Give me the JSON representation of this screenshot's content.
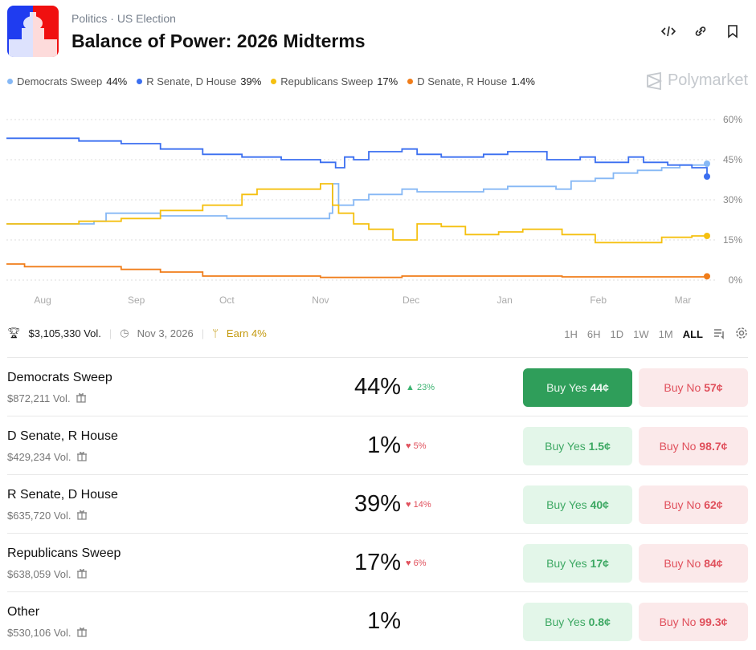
{
  "header": {
    "category": "Politics",
    "subcategory": "US Election",
    "separator": "·",
    "title": "Balance of Power: 2026 Midterms",
    "brand": "Polymarket"
  },
  "legend": [
    {
      "label": "Democrats Sweep",
      "value": "44%",
      "color": "#86b8f5"
    },
    {
      "label": "R Senate, D House",
      "value": "39%",
      "color": "#3b6ff0"
    },
    {
      "label": "Republicans Sweep",
      "value": "17%",
      "color": "#f5c010"
    },
    {
      "label": "D Senate, R House",
      "value": "1.4%",
      "color": "#f07d1a"
    }
  ],
  "chart_data": {
    "type": "line",
    "xlabel": "",
    "ylabel": "",
    "ylim": [
      0,
      60
    ],
    "yticks": [
      "0%",
      "15%",
      "30%",
      "45%",
      "60%"
    ],
    "ytick_values": [
      0,
      15,
      30,
      45,
      60
    ],
    "grid": true,
    "x_unit": "days since Aug 1",
    "xlim": [
      -12,
      220
    ],
    "xticks": [
      "Aug",
      "Sep",
      "Oct",
      "Nov",
      "Dec",
      "Jan",
      "Feb",
      "Mar"
    ],
    "xtick_values": [
      0,
      31,
      61,
      92,
      122,
      153,
      184,
      212
    ],
    "series": [
      {
        "name": "Democrats Sweep",
        "color": "#86b8f5",
        "x": [
          -12,
          17,
          21,
          34,
          39,
          53,
          61,
          92,
          95,
          96,
          98,
          103,
          108,
          116,
          119,
          124,
          133,
          146,
          154,
          160,
          170,
          175,
          183,
          189,
          197,
          205,
          211,
          220
        ],
        "y": [
          21,
          22,
          25,
          25,
          24,
          24,
          23,
          23,
          25,
          36,
          28,
          30,
          32,
          32,
          34,
          33,
          33,
          34,
          35,
          35,
          34,
          37,
          38,
          40,
          41,
          42,
          43,
          43.5
        ]
      },
      {
        "name": "R Senate, D House",
        "color": "#3b6ff0",
        "x": [
          -12,
          12,
          26,
          39,
          53,
          66,
          79,
          92,
          97,
          100,
          103,
          108,
          119,
          124,
          132,
          146,
          154,
          167,
          178,
          183,
          194,
          199,
          207,
          215,
          220
        ],
        "y": [
          53,
          52,
          51,
          49,
          47,
          46,
          45,
          44,
          42,
          46,
          45,
          48,
          49,
          47,
          46,
          47,
          48,
          45,
          46,
          44,
          46,
          44,
          43,
          42,
          38.7
        ]
      },
      {
        "name": "Republicans Sweep",
        "color": "#f5c010",
        "x": [
          -12,
          12,
          26,
          39,
          53,
          66,
          71,
          79,
          87,
          92,
          96,
          98,
          103,
          108,
          116,
          124,
          132,
          140,
          151,
          159,
          172,
          183,
          194,
          205,
          215,
          220
        ],
        "y": [
          21,
          22,
          23,
          26,
          28,
          32,
          34,
          34,
          34,
          36,
          28,
          25,
          21,
          19,
          15,
          21,
          20,
          17,
          18,
          19,
          17,
          14,
          14,
          16,
          16.5,
          16.5
        ]
      },
      {
        "name": "D Senate, R House",
        "color": "#f07d1a",
        "x": [
          -12,
          -6,
          26,
          39,
          53,
          92,
          119,
          172,
          220
        ],
        "y": [
          6,
          5,
          4,
          3,
          1.5,
          1,
          1.5,
          1.2,
          1.4
        ]
      }
    ]
  },
  "stats": {
    "volume": "$3,105,330 Vol.",
    "date": "Nov 3, 2026",
    "earn": "Earn 4%"
  },
  "ranges": [
    "1H",
    "6H",
    "1D",
    "1W",
    "1M",
    "ALL"
  ],
  "outcomes": [
    {
      "name": "Democrats Sweep",
      "vol": "$872,211 Vol.",
      "pct": "44%",
      "change": "23%",
      "dir": "up",
      "yes_label": "Buy Yes",
      "yes_price": "44¢",
      "no_label": "Buy No",
      "no_price": "57¢"
    },
    {
      "name": "D Senate, R House",
      "vol": "$429,234 Vol.",
      "pct": "1%",
      "change": "5%",
      "dir": "dn",
      "yes_label": "Buy Yes",
      "yes_price": "1.5¢",
      "no_label": "Buy No",
      "no_price": "98.7¢"
    },
    {
      "name": "R Senate, D House",
      "vol": "$635,720 Vol.",
      "pct": "39%",
      "change": "14%",
      "dir": "dn",
      "yes_label": "Buy Yes",
      "yes_price": "40¢",
      "no_label": "Buy No",
      "no_price": "62¢"
    },
    {
      "name": "Republicans Sweep",
      "vol": "$638,059 Vol.",
      "pct": "17%",
      "change": "6%",
      "dir": "dn",
      "yes_label": "Buy Yes",
      "yes_price": "17¢",
      "no_label": "Buy No",
      "no_price": "84¢"
    },
    {
      "name": "Other",
      "vol": "$530,106 Vol.",
      "pct": "1%",
      "change": null,
      "dir": "",
      "yes_label": "Buy Yes",
      "yes_price": "0.8¢",
      "no_label": "Buy No",
      "no_price": "99.3¢"
    }
  ]
}
